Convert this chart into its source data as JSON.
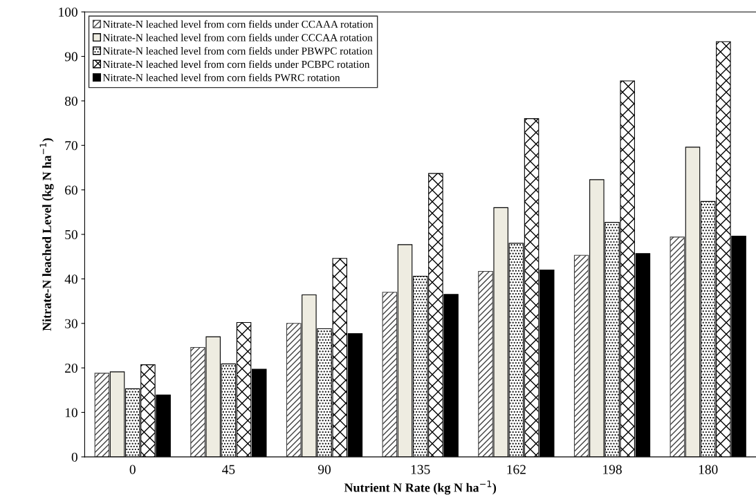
{
  "chart_data": {
    "type": "bar",
    "xlabel": "Nutrient N Rate (kg N ha$^{−1}$)",
    "ylabel": "Nitrate-N leached Level (kg N ha$^{−1}$)",
    "categories": [
      "0",
      "45",
      "90",
      "135",
      "162",
      "198",
      "180"
    ],
    "ylim": [
      0,
      100
    ],
    "yticks": [
      0,
      10,
      20,
      30,
      40,
      50,
      60,
      70,
      80,
      90,
      100
    ],
    "grid": false,
    "legend": "top left",
    "series": [
      {
        "name": "Nitrate-N leached level from corn fields under CCAAA rotation",
        "color": "#404040",
        "values": [
          18.8,
          24.6,
          30.0,
          37.0,
          41.7,
          45.3,
          49.4
        ]
      },
      {
        "name": "Nitrate-N leached level from corn fields under CCCAA rotation",
        "color": "#eeece1",
        "values": [
          19.1,
          27.0,
          36.4,
          47.7,
          56.0,
          62.3,
          69.6
        ]
      },
      {
        "name": "Nitrate-N leached level from corn fields under PBWPC rotation",
        "color": "#000000",
        "values": [
          15.3,
          20.9,
          28.8,
          40.6,
          48.0,
          52.7,
          57.4
        ]
      },
      {
        "name": "Nitrate-N leached level from corn fields under PCBPC rotation",
        "color": "#000000",
        "values": [
          20.7,
          30.2,
          44.6,
          63.7,
          76.0,
          84.5,
          93.3
        ]
      },
      {
        "name": "Nitrate-N leached level from corn fields PWRC rotation",
        "color": "#000000",
        "values": [
          13.9,
          19.7,
          27.7,
          36.5,
          42.0,
          45.7,
          49.6
        ]
      }
    ]
  }
}
